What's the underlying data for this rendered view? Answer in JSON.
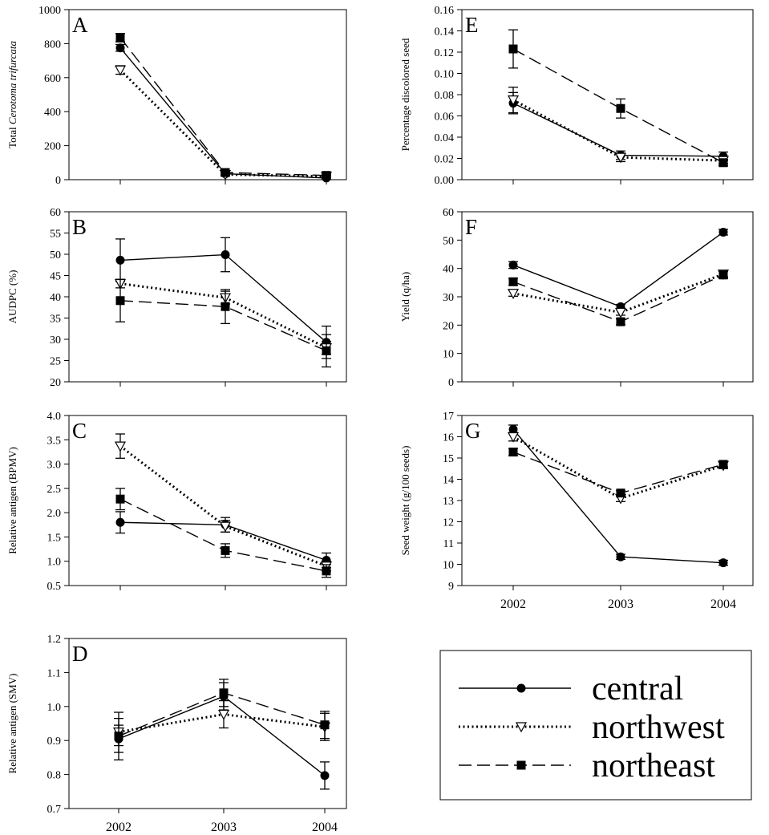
{
  "chart_data": [
    {
      "panel": "A",
      "type": "line",
      "ylabel": "Total Cerotoma trifurcata",
      "ylabel_parts": [
        {
          "text": "Total ",
          "italic": false
        },
        {
          "text": "Cerotoma trifurcata",
          "italic": true
        }
      ],
      "ylim": [
        0,
        1000
      ],
      "yticks": [
        0,
        200,
        400,
        600,
        800,
        1000
      ],
      "ytick_labels": [
        "0",
        "200",
        "400",
        "600",
        "800",
        "1000"
      ],
      "categories": [
        "2002",
        "2003",
        "2004"
      ],
      "series": [
        {
          "name": "central",
          "values": [
            775,
            35,
            10
          ],
          "errors": [
            20,
            10,
            5
          ]
        },
        {
          "name": "northwest",
          "values": [
            645,
            30,
            20
          ],
          "errors": [
            25,
            8,
            6
          ]
        },
        {
          "name": "northeast",
          "values": [
            835,
            42,
            25
          ],
          "errors": [
            25,
            10,
            8
          ]
        }
      ]
    },
    {
      "panel": "B",
      "type": "line",
      "ylabel": "AUDPC (%)",
      "ylim": [
        20,
        60
      ],
      "yticks": [
        20,
        25,
        30,
        35,
        40,
        45,
        50,
        55,
        60
      ],
      "ytick_labels": [
        "20",
        "25",
        "30",
        "35",
        "40",
        "45",
        "50",
        "55",
        "60"
      ],
      "categories": [
        "2002",
        "2003",
        "2004"
      ],
      "series": [
        {
          "name": "central",
          "values": [
            48.6,
            49.9,
            29.3
          ],
          "errors": [
            5.0,
            4.0,
            3.8
          ]
        },
        {
          "name": "northwest",
          "values": [
            43.1,
            39.8,
            28.0
          ],
          "errors": [
            1.0,
            1.5,
            1.5
          ]
        },
        {
          "name": "northeast",
          "values": [
            39.1,
            37.7,
            27.3
          ],
          "errors": [
            5.0,
            4.0,
            3.8
          ]
        }
      ]
    },
    {
      "panel": "C",
      "type": "line",
      "ylabel": "Relative antigen (BPMV)",
      "ylim": [
        0.5,
        4.0
      ],
      "yticks": [
        0.5,
        1.0,
        1.5,
        2.0,
        2.5,
        3.0,
        3.5,
        4.0
      ],
      "ytick_labels": [
        "0.5",
        "1.0",
        "1.5",
        "2.0",
        "2.5",
        "3.0",
        "3.5",
        "4.0"
      ],
      "categories": [
        "2002",
        "2003",
        "2004"
      ],
      "series": [
        {
          "name": "central",
          "values": [
            1.8,
            1.75,
            1.02
          ],
          "errors": [
            0.22,
            0.15,
            0.15
          ]
        },
        {
          "name": "northwest",
          "values": [
            3.37,
            1.72,
            0.9
          ],
          "errors": [
            0.25,
            0.12,
            0.1
          ]
        },
        {
          "name": "northeast",
          "values": [
            2.28,
            1.22,
            0.8
          ],
          "errors": [
            0.22,
            0.14,
            0.13
          ]
        }
      ]
    },
    {
      "panel": "D",
      "type": "line",
      "ylabel": "Relative antigen (SMV)",
      "ylim": [
        0.7,
        1.2
      ],
      "yticks": [
        0.7,
        0.8,
        0.9,
        1.0,
        1.1,
        1.2
      ],
      "ytick_labels": [
        "0.7",
        "0.8",
        "0.9",
        "1.0",
        "1.1",
        "1.2"
      ],
      "categories": [
        "2002",
        "2003",
        "2004"
      ],
      "series": [
        {
          "name": "central",
          "values": [
            0.905,
            1.03,
            0.797
          ],
          "errors": [
            0.04,
            0.04,
            0.04
          ]
        },
        {
          "name": "northwest",
          "values": [
            0.925,
            0.977,
            0.94
          ],
          "errors": [
            0.04,
            0.04,
            0.04
          ]
        },
        {
          "name": "northeast",
          "values": [
            0.913,
            1.04,
            0.946
          ],
          "errors": [
            0.07,
            0.04,
            0.04
          ]
        }
      ]
    },
    {
      "panel": "E",
      "type": "line",
      "ylabel": "Percentage discolored seed",
      "ylim": [
        0.0,
        0.16
      ],
      "yticks": [
        0.0,
        0.02,
        0.04,
        0.06,
        0.08,
        0.1,
        0.12,
        0.14,
        0.16
      ],
      "ytick_labels": [
        "0.00",
        "0.02",
        "0.04",
        "0.06",
        "0.08",
        "0.10",
        "0.12",
        "0.14",
        "0.16"
      ],
      "categories": [
        "2002",
        "2003",
        "2004"
      ],
      "series": [
        {
          "name": "central",
          "values": [
            0.072,
            0.023,
            0.022
          ],
          "errors": [
            0.01,
            0.004,
            0.004
          ]
        },
        {
          "name": "northwest",
          "values": [
            0.075,
            0.021,
            0.018
          ],
          "errors": [
            0.012,
            0.004,
            0.003
          ]
        },
        {
          "name": "northeast",
          "values": [
            0.123,
            0.067,
            0.016
          ],
          "errors": [
            0.018,
            0.009,
            0.003
          ]
        }
      ]
    },
    {
      "panel": "F",
      "type": "line",
      "ylabel": "Yield (q/ha)",
      "ylim": [
        0,
        60
      ],
      "yticks": [
        0,
        10,
        20,
        30,
        40,
        50,
        60
      ],
      "ytick_labels": [
        "0",
        "10",
        "20",
        "30",
        "40",
        "50",
        "60"
      ],
      "categories": [
        "2002",
        "2003",
        "2004"
      ],
      "series": [
        {
          "name": "central",
          "values": [
            41.2,
            26.5,
            52.8
          ],
          "errors": [
            1.2,
            0.8,
            1.0
          ]
        },
        {
          "name": "northwest",
          "values": [
            31.2,
            24.5,
            38.0
          ],
          "errors": [
            1.0,
            1.0,
            1.0
          ]
        },
        {
          "name": "northeast",
          "values": [
            35.3,
            21.2,
            37.7
          ],
          "errors": [
            1.2,
            1.0,
            1.2
          ]
        }
      ]
    },
    {
      "panel": "G",
      "type": "line",
      "ylabel": "Seed weight (g/100 seeds)",
      "ylim": [
        9,
        17
      ],
      "yticks": [
        9,
        10,
        11,
        12,
        13,
        14,
        15,
        16,
        17
      ],
      "ytick_labels": [
        "9",
        "10",
        "11",
        "12",
        "13",
        "14",
        "15",
        "16",
        "17"
      ],
      "categories": [
        "2002",
        "2003",
        "2004"
      ],
      "series": [
        {
          "name": "central",
          "values": [
            16.35,
            10.35,
            10.07
          ],
          "errors": [
            0.2,
            0.12,
            0.12
          ]
        },
        {
          "name": "northwest",
          "values": [
            16.0,
            13.1,
            14.65
          ],
          "errors": [
            0.2,
            0.15,
            0.15
          ]
        },
        {
          "name": "northeast",
          "values": [
            15.28,
            13.35,
            14.7
          ],
          "errors": [
            0.17,
            0.12,
            0.12
          ]
        }
      ]
    }
  ],
  "legend": {
    "position": "bottom-right",
    "entries": [
      {
        "name": "central",
        "marker": "filled-circle",
        "line": "solid"
      },
      {
        "name": "northwest",
        "marker": "open-triangle-down",
        "line": "dotted"
      },
      {
        "name": "northeast",
        "marker": "filled-square",
        "line": "dashed"
      }
    ]
  }
}
